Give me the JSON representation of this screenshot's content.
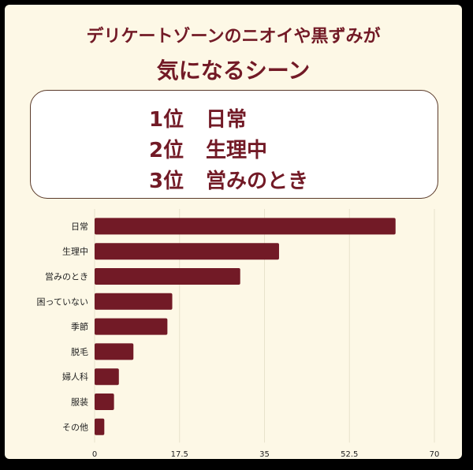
{
  "headline": {
    "line1": "デリケートゾーンのニオイや黒ずみが",
    "line2": "気になるシーン"
  },
  "ranking": [
    {
      "place": "1位",
      "item": "日常"
    },
    {
      "place": "2位",
      "item": "生理中"
    },
    {
      "place": "3位",
      "item": "営みのとき"
    }
  ],
  "colors": {
    "bar": "#721a26",
    "text": "#721a26",
    "background": "#fdf8e6",
    "grid": "#e8e2cc"
  },
  "chart_data": {
    "type": "bar",
    "orientation": "horizontal",
    "categories": [
      "日常",
      "生理中",
      "営みのとき",
      "困っていない",
      "季節",
      "脱毛",
      "婦人科",
      "服装",
      "その他"
    ],
    "values": [
      62,
      38,
      30,
      16,
      15,
      8,
      5,
      4,
      2
    ],
    "xlim": [
      0,
      70
    ],
    "xticks": [
      "0",
      "17.5",
      "35",
      "52.5",
      "70"
    ],
    "grid": true
  }
}
